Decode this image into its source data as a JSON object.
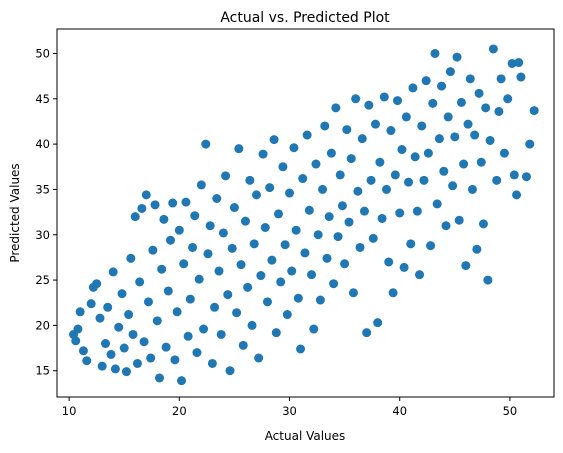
{
  "chart_data": {
    "type": "scatter",
    "title": "Actual vs. Predicted Plot",
    "xlabel": "Actual Values",
    "ylabel": "Predicted Values",
    "xlim": [
      8.9,
      54.0
    ],
    "ylim": [
      12.1,
      52.7
    ],
    "xticks": [
      10,
      20,
      30,
      40,
      50
    ],
    "yticks": [
      15,
      20,
      25,
      30,
      35,
      40,
      45,
      50
    ],
    "grid": false,
    "legend": "none",
    "colors": {
      "points": "#1f77b4"
    },
    "series": [
      {
        "points": [
          [
            10.4,
            19.0
          ],
          [
            10.6,
            18.3
          ],
          [
            10.8,
            19.6
          ],
          [
            11.0,
            21.5
          ],
          [
            11.3,
            17.2
          ],
          [
            11.6,
            16.1
          ],
          [
            12.0,
            22.4
          ],
          [
            12.2,
            24.2
          ],
          [
            12.5,
            24.6
          ],
          [
            12.8,
            20.8
          ],
          [
            13.0,
            15.5
          ],
          [
            13.3,
            18.0
          ],
          [
            13.5,
            22.0
          ],
          [
            13.8,
            16.8
          ],
          [
            14.0,
            25.9
          ],
          [
            14.2,
            15.2
          ],
          [
            14.5,
            19.8
          ],
          [
            14.8,
            23.5
          ],
          [
            15.0,
            17.5
          ],
          [
            15.2,
            14.9
          ],
          [
            15.4,
            21.2
          ],
          [
            15.6,
            27.4
          ],
          [
            15.8,
            19.0
          ],
          [
            16.0,
            32.0
          ],
          [
            16.2,
            15.8
          ],
          [
            16.4,
            24.8
          ],
          [
            16.6,
            32.9
          ],
          [
            16.8,
            18.2
          ],
          [
            17.0,
            34.4
          ],
          [
            17.2,
            22.6
          ],
          [
            17.4,
            16.4
          ],
          [
            17.6,
            28.3
          ],
          [
            17.8,
            33.3
          ],
          [
            18.0,
            20.5
          ],
          [
            18.2,
            14.2
          ],
          [
            18.4,
            26.2
          ],
          [
            18.6,
            31.7
          ],
          [
            18.8,
            17.6
          ],
          [
            19.0,
            23.8
          ],
          [
            19.2,
            29.4
          ],
          [
            19.4,
            33.5
          ],
          [
            19.6,
            16.2
          ],
          [
            19.8,
            21.5
          ],
          [
            20.0,
            30.5
          ],
          [
            20.2,
            13.9
          ],
          [
            20.4,
            26.8
          ],
          [
            20.6,
            33.6
          ],
          [
            20.8,
            18.8
          ],
          [
            21.0,
            22.9
          ],
          [
            21.2,
            28.6
          ],
          [
            21.4,
            32.1
          ],
          [
            21.6,
            17.0
          ],
          [
            21.8,
            25.1
          ],
          [
            22.0,
            35.5
          ],
          [
            22.2,
            19.6
          ],
          [
            22.4,
            40.0
          ],
          [
            22.6,
            27.9
          ],
          [
            22.8,
            31.0
          ],
          [
            23.0,
            15.8
          ],
          [
            23.2,
            22.0
          ],
          [
            23.4,
            34.0
          ],
          [
            23.6,
            26.0
          ],
          [
            23.8,
            19.0
          ],
          [
            24.0,
            30.2
          ],
          [
            24.2,
            36.5
          ],
          [
            24.4,
            23.4
          ],
          [
            24.6,
            15.0
          ],
          [
            24.8,
            28.5
          ],
          [
            25.0,
            33.0
          ],
          [
            25.2,
            21.4
          ],
          [
            25.4,
            39.5
          ],
          [
            25.6,
            26.7
          ],
          [
            25.8,
            17.8
          ],
          [
            26.0,
            31.5
          ],
          [
            26.2,
            24.2
          ],
          [
            26.4,
            36.0
          ],
          [
            26.6,
            20.0
          ],
          [
            26.8,
            29.0
          ],
          [
            27.0,
            34.4
          ],
          [
            27.2,
            16.4
          ],
          [
            27.4,
            25.5
          ],
          [
            27.6,
            38.9
          ],
          [
            27.8,
            30.8
          ],
          [
            28.0,
            22.6
          ],
          [
            28.2,
            35.2
          ],
          [
            28.4,
            27.2
          ],
          [
            28.6,
            40.5
          ],
          [
            28.8,
            19.2
          ],
          [
            29.0,
            32.3
          ],
          [
            29.2,
            24.8
          ],
          [
            29.4,
            37.5
          ],
          [
            29.6,
            28.9
          ],
          [
            29.8,
            21.2
          ],
          [
            30.0,
            34.6
          ],
          [
            30.2,
            26.0
          ],
          [
            30.4,
            39.6
          ],
          [
            30.6,
            30.5
          ],
          [
            30.8,
            23.0
          ],
          [
            31.0,
            17.4
          ],
          [
            31.2,
            36.2
          ],
          [
            31.4,
            28.0
          ],
          [
            31.6,
            41.0
          ],
          [
            31.8,
            32.7
          ],
          [
            32.0,
            25.6
          ],
          [
            32.2,
            19.6
          ],
          [
            32.4,
            37.8
          ],
          [
            32.6,
            30.0
          ],
          [
            32.8,
            22.8
          ],
          [
            33.0,
            35.0
          ],
          [
            33.2,
            42.0
          ],
          [
            33.4,
            27.4
          ],
          [
            33.6,
            32.0
          ],
          [
            33.8,
            39.0
          ],
          [
            34.0,
            24.6
          ],
          [
            34.2,
            44.0
          ],
          [
            34.4,
            29.8
          ],
          [
            34.6,
            36.6
          ],
          [
            34.8,
            33.2
          ],
          [
            35.0,
            26.8
          ],
          [
            35.2,
            41.6
          ],
          [
            35.4,
            31.4
          ],
          [
            35.6,
            38.4
          ],
          [
            35.8,
            23.6
          ],
          [
            36.0,
            45.0
          ],
          [
            36.2,
            34.8
          ],
          [
            36.4,
            28.6
          ],
          [
            36.6,
            40.6
          ],
          [
            36.8,
            32.6
          ],
          [
            37.0,
            19.2
          ],
          [
            37.2,
            44.3
          ],
          [
            37.4,
            36.0
          ],
          [
            37.6,
            29.6
          ],
          [
            37.8,
            42.2
          ],
          [
            38.0,
            20.3
          ],
          [
            38.2,
            38.0
          ],
          [
            38.4,
            31.8
          ],
          [
            38.6,
            45.2
          ],
          [
            38.8,
            35.0
          ],
          [
            39.0,
            27.0
          ],
          [
            39.2,
            41.5
          ],
          [
            39.4,
            23.6
          ],
          [
            39.6,
            36.6
          ],
          [
            39.8,
            44.8
          ],
          [
            40.0,
            32.4
          ],
          [
            40.2,
            39.4
          ],
          [
            40.4,
            26.4
          ],
          [
            40.6,
            43.0
          ],
          [
            40.8,
            35.8
          ],
          [
            41.0,
            29.0
          ],
          [
            41.2,
            46.2
          ],
          [
            41.4,
            38.6
          ],
          [
            41.6,
            32.6
          ],
          [
            41.8,
            25.6
          ],
          [
            42.0,
            42.0
          ],
          [
            42.2,
            36.0
          ],
          [
            42.4,
            47.0
          ],
          [
            42.6,
            39.0
          ],
          [
            42.8,
            28.8
          ],
          [
            43.0,
            44.5
          ],
          [
            43.2,
            50.0
          ],
          [
            43.4,
            33.4
          ],
          [
            43.6,
            40.6
          ],
          [
            43.8,
            46.4
          ],
          [
            44.0,
            37.0
          ],
          [
            44.2,
            31.0
          ],
          [
            44.4,
            43.0
          ],
          [
            44.6,
            48.0
          ],
          [
            44.8,
            35.4
          ],
          [
            45.0,
            40.8
          ],
          [
            45.2,
            49.6
          ],
          [
            45.4,
            31.6
          ],
          [
            45.6,
            44.6
          ],
          [
            45.8,
            37.8
          ],
          [
            46.0,
            26.6
          ],
          [
            46.2,
            42.2
          ],
          [
            46.4,
            47.2
          ],
          [
            46.6,
            35.0
          ],
          [
            46.8,
            41.0
          ],
          [
            47.0,
            28.4
          ],
          [
            47.2,
            45.6
          ],
          [
            47.4,
            38.0
          ],
          [
            47.6,
            31.2
          ],
          [
            47.8,
            44.0
          ],
          [
            48.0,
            25.0
          ],
          [
            48.2,
            40.4
          ],
          [
            48.5,
            50.5
          ],
          [
            48.8,
            36.0
          ],
          [
            49.0,
            43.6
          ],
          [
            49.2,
            47.2
          ],
          [
            49.5,
            39.0
          ],
          [
            49.8,
            45.0
          ],
          [
            50.2,
            48.9
          ],
          [
            50.4,
            36.6
          ],
          [
            50.6,
            34.4
          ],
          [
            50.8,
            49.0
          ],
          [
            51.0,
            47.4
          ],
          [
            51.5,
            36.4
          ],
          [
            51.8,
            40.0
          ],
          [
            52.2,
            43.7
          ]
        ]
      }
    ]
  }
}
